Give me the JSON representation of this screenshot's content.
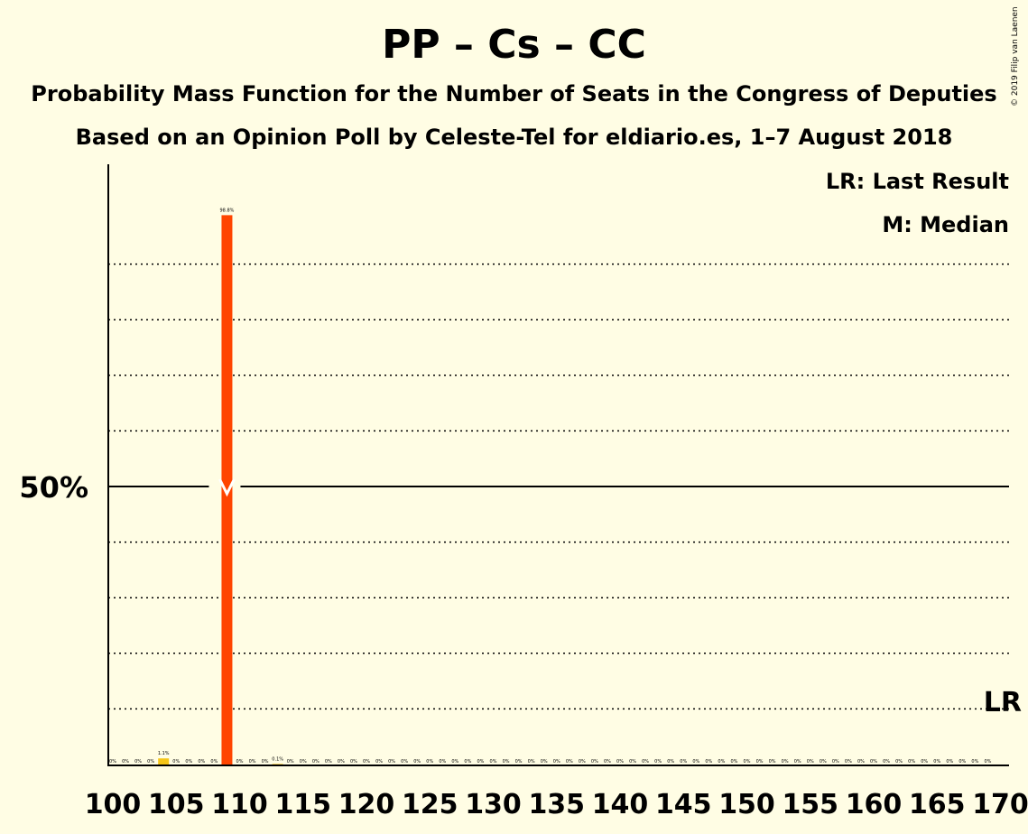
{
  "title": "PP – Cs – CC",
  "subtitle": "Probability Mass Function for the Number of Seats in the Congress of Deputies",
  "subtitle2": "Based on an Opinion Poll by Celeste-Tel for eldiario.es, 1–7 August 2018",
  "copyright": "© 2019 Filip van Laenen",
  "legend": {
    "last_result": "LR: Last Result",
    "median": "M: Median"
  },
  "last_result_marker": "LR",
  "colors": {
    "bar": "#FF4500",
    "bar_small": "#F5C518",
    "background": "#FFFDE4",
    "grid": "#000000"
  },
  "chart_data": {
    "type": "bar",
    "x": [
      100,
      101,
      102,
      103,
      104,
      105,
      106,
      107,
      108,
      109,
      110,
      111,
      112,
      113,
      114,
      115,
      116,
      117,
      118,
      119,
      120,
      121,
      122,
      123,
      124,
      125,
      126,
      127,
      128,
      129,
      130,
      131,
      132,
      133,
      134,
      135,
      136,
      137,
      138,
      139,
      140,
      141,
      142,
      143,
      144,
      145,
      146,
      147,
      148,
      149,
      150,
      151,
      152,
      153,
      154,
      155,
      156,
      157,
      158,
      159,
      160,
      161,
      162,
      163,
      164,
      165,
      166,
      167,
      168,
      169,
      170
    ],
    "values": [
      0,
      0,
      0,
      0,
      1.1,
      0,
      0,
      0,
      0,
      98.8,
      0,
      0,
      0,
      0.1,
      0,
      0,
      0,
      0,
      0,
      0,
      0,
      0,
      0,
      0,
      0,
      0,
      0,
      0,
      0,
      0,
      0,
      0,
      0,
      0,
      0,
      0,
      0,
      0,
      0,
      0,
      0,
      0,
      0,
      0,
      0,
      0,
      0,
      0,
      0,
      0,
      0,
      0,
      0,
      0,
      0,
      0,
      0,
      0,
      0,
      0,
      0,
      0,
      0,
      0,
      0,
      0,
      0,
      0,
      0,
      0,
      0
    ],
    "labels": [
      "0%",
      "0%",
      "0%",
      "0%",
      "1.1%",
      "0%",
      "0%",
      "0%",
      "0%",
      "98.8%",
      "0%",
      "0%",
      "0%",
      "0.1%",
      "0%",
      "0%",
      "0%",
      "0%",
      "0%",
      "0%",
      "0%",
      "0%",
      "0%",
      "0%",
      "0%",
      "0%",
      "0%",
      "0%",
      "0%",
      "0%",
      "0%",
      "0%",
      "0%",
      "0%",
      "0%",
      "0%",
      "0%",
      "0%",
      "0%",
      "0%",
      "0%",
      "0%",
      "0%",
      "0%",
      "0%",
      "0%",
      "0%",
      "0%",
      "0%",
      "0%",
      "0%",
      "0%",
      "0%",
      "0%",
      "0%",
      "0%",
      "0%",
      "0%",
      "0%",
      "0%",
      "0%",
      "0%",
      "0%",
      "0%",
      "0%",
      "0%",
      "0%",
      "0%",
      "0%",
      "0%"
    ],
    "x_ticks": [
      100,
      105,
      110,
      115,
      120,
      125,
      130,
      135,
      140,
      145,
      150,
      155,
      160,
      165,
      170
    ],
    "y_tick_label": "50%",
    "y_gridlines": [
      10,
      20,
      30,
      40,
      60,
      70,
      80,
      90
    ],
    "ylim": [
      0,
      100
    ],
    "median": 109,
    "last_result": 170
  }
}
